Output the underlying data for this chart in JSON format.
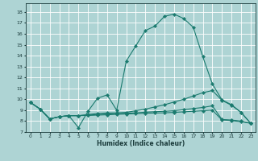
{
  "xlabel": "Humidex (Indice chaleur)",
  "bg_color": "#aed4d4",
  "grid_color": "#ffffff",
  "line_color": "#1a7a6e",
  "xlim": [
    -0.5,
    23.5
  ],
  "ylim": [
    7,
    18.8
  ],
  "xticks": [
    0,
    1,
    2,
    3,
    4,
    5,
    6,
    7,
    8,
    9,
    10,
    11,
    12,
    13,
    14,
    15,
    16,
    17,
    18,
    19,
    20,
    21,
    22,
    23
  ],
  "yticks": [
    7,
    8,
    9,
    10,
    11,
    12,
    13,
    14,
    15,
    16,
    17,
    18
  ],
  "curve1_x": [
    0,
    1,
    2,
    3,
    4,
    5,
    6,
    7,
    8,
    9,
    10,
    11,
    12,
    13,
    14,
    15,
    16,
    17,
    18,
    19,
    20,
    21,
    22,
    23
  ],
  "curve1_y": [
    9.7,
    9.1,
    8.2,
    8.4,
    8.5,
    7.4,
    8.9,
    10.1,
    10.4,
    9.0,
    13.5,
    14.9,
    16.3,
    16.7,
    17.6,
    17.8,
    17.4,
    16.6,
    13.9,
    11.4,
    9.95,
    9.5,
    8.8,
    7.8
  ],
  "curve2_x": [
    0,
    1,
    2,
    3,
    4,
    5,
    6,
    7,
    8,
    9,
    10,
    11,
    12,
    13,
    14,
    15,
    16,
    17,
    18,
    19,
    20,
    21,
    22,
    23
  ],
  "curve2_y": [
    9.7,
    9.1,
    8.2,
    8.4,
    8.5,
    8.5,
    8.6,
    8.7,
    8.75,
    8.75,
    8.8,
    8.95,
    9.1,
    9.3,
    9.5,
    9.75,
    10.0,
    10.3,
    10.6,
    10.8,
    9.9,
    9.45,
    8.8,
    7.8
  ],
  "curve3_x": [
    0,
    1,
    2,
    3,
    4,
    5,
    6,
    7,
    8,
    9,
    10,
    11,
    12,
    13,
    14,
    15,
    16,
    17,
    18,
    19,
    20,
    21,
    22,
    23
  ],
  "curve3_y": [
    9.7,
    9.1,
    8.2,
    8.4,
    8.5,
    8.5,
    8.55,
    8.6,
    8.65,
    8.7,
    8.72,
    8.76,
    8.82,
    8.86,
    8.9,
    8.95,
    9.05,
    9.15,
    9.25,
    9.4,
    8.15,
    8.1,
    8.0,
    7.8
  ],
  "curve4_x": [
    0,
    1,
    2,
    3,
    4,
    5,
    6,
    7,
    8,
    9,
    10,
    11,
    12,
    13,
    14,
    15,
    16,
    17,
    18,
    19,
    20,
    21,
    22,
    23
  ],
  "curve4_y": [
    9.7,
    9.1,
    8.2,
    8.4,
    8.5,
    8.5,
    8.52,
    8.55,
    8.58,
    8.62,
    8.65,
    8.68,
    8.72,
    8.74,
    8.76,
    8.8,
    8.85,
    8.9,
    8.95,
    9.0,
    8.1,
    8.05,
    7.95,
    7.8
  ]
}
